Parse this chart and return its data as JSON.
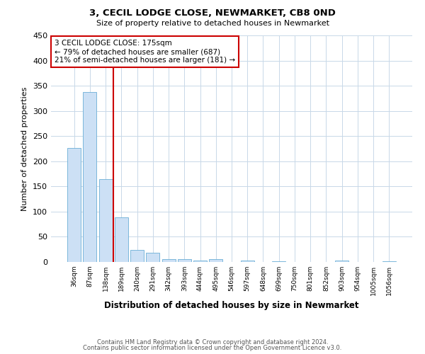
{
  "title": "3, CECIL LODGE CLOSE, NEWMARKET, CB8 0ND",
  "subtitle": "Size of property relative to detached houses in Newmarket",
  "xlabel": "Distribution of detached houses by size in Newmarket",
  "ylabel": "Number of detached properties",
  "bar_color": "#cce0f5",
  "bar_edge_color": "#6aaed6",
  "bin_labels": [
    "36sqm",
    "87sqm",
    "138sqm",
    "189sqm",
    "240sqm",
    "291sqm",
    "342sqm",
    "393sqm",
    "444sqm",
    "495sqm",
    "546sqm",
    "597sqm",
    "648sqm",
    "699sqm",
    "750sqm",
    "801sqm",
    "852sqm",
    "903sqm",
    "954sqm",
    "1005sqm",
    "1056sqm"
  ],
  "bar_values": [
    226,
    337,
    165,
    89,
    24,
    18,
    6,
    5,
    3,
    5,
    0,
    3,
    0,
    2,
    0,
    0,
    0,
    3,
    0,
    0,
    2
  ],
  "vline_color": "#cc0000",
  "ylim": [
    0,
    450
  ],
  "yticks": [
    0,
    50,
    100,
    150,
    200,
    250,
    300,
    350,
    400,
    450
  ],
  "annotation_title": "3 CECIL LODGE CLOSE: 175sqm",
  "annotation_line1": "← 79% of detached houses are smaller (687)",
  "annotation_line2": "21% of semi-detached houses are larger (181) →",
  "annotation_box_color": "#cc0000",
  "footer_line1": "Contains HM Land Registry data © Crown copyright and database right 2024.",
  "footer_line2": "Contains public sector information licensed under the Open Government Licence v3.0.",
  "background_color": "#ffffff",
  "grid_color": "#c8d8e8"
}
